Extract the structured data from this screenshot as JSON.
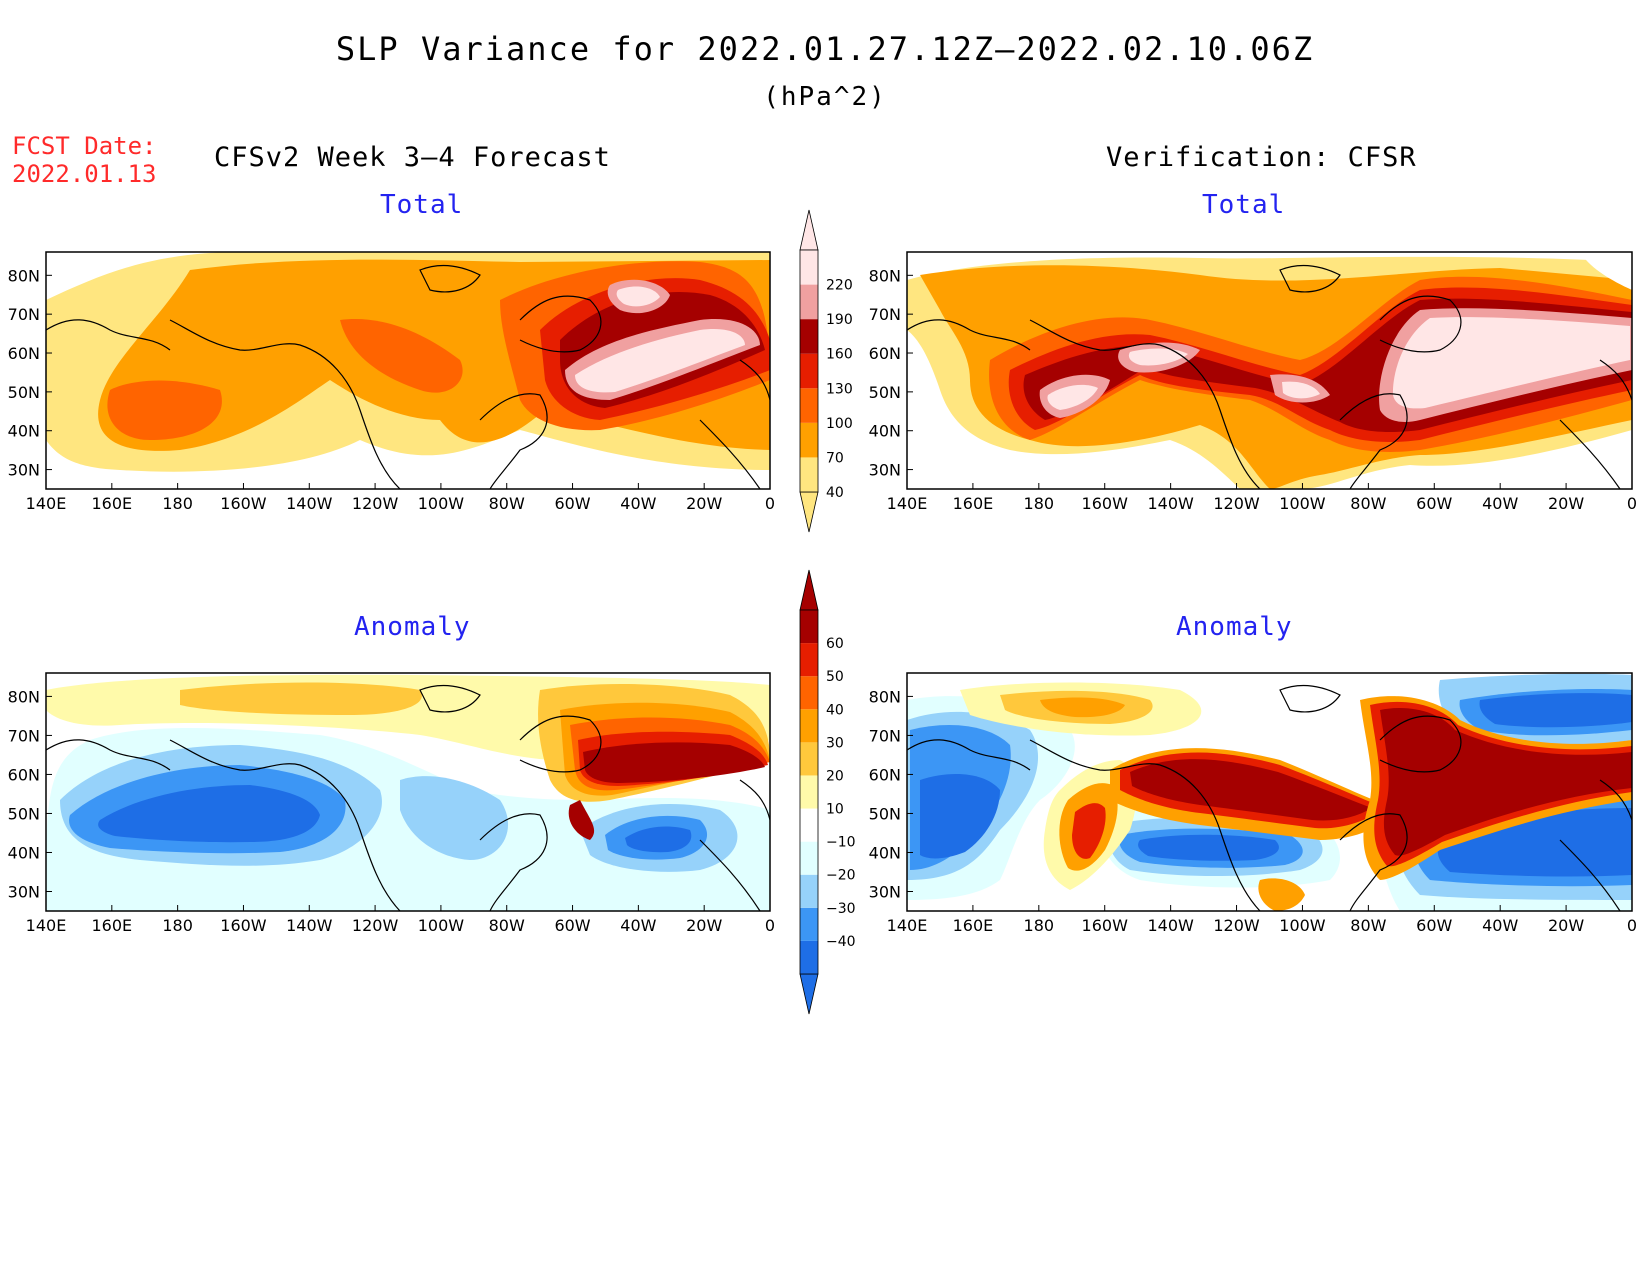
{
  "title": "SLP Variance for 2022.01.27.12Z–2022.02.10.06Z",
  "units": "(hPa^2)",
  "fcst_label": "FCST Date:",
  "fcst_date": "2022.01.13",
  "left_heading": "CFSv2 Week 3–4 Forecast",
  "right_heading": "Verification: CFSR",
  "panels": {
    "top_left": "Total",
    "top_right": "Total",
    "bottom_left": "Anomaly",
    "bottom_right": "Anomaly"
  },
  "lat_labels": [
    "80N",
    "70N",
    "60N",
    "50N",
    "40N",
    "30N"
  ],
  "lon_labels": [
    "140E",
    "160E",
    "180",
    "160W",
    "140W",
    "120W",
    "100W",
    "80W",
    "60W",
    "40W",
    "20W",
    "0"
  ],
  "total_colorbar": {
    "levels": [
      "40",
      "70",
      "100",
      "130",
      "160",
      "190",
      "220"
    ],
    "colors": [
      "#ffe680",
      "#ffa000",
      "#ff6400",
      "#e61e00",
      "#a50000",
      "#f0a0a0",
      "#ffe6e6"
    ]
  },
  "anomaly_colorbar": {
    "levels": [
      "−40",
      "−30",
      "−20",
      "−10",
      "10",
      "20",
      "30",
      "40",
      "50",
      "60"
    ],
    "colors": [
      "#1e6ee6",
      "#3c96f5",
      "#96d2fa",
      "#e1ffff",
      "#ffffff",
      "#fffaaa",
      "#ffc83c",
      "#ffa000",
      "#ff6400",
      "#e61e00",
      "#a50000"
    ]
  }
}
